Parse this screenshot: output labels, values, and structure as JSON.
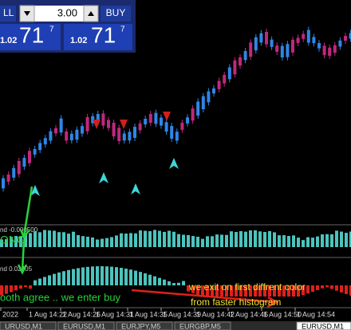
{
  "toolbar": {
    "sell_label": "LL",
    "lot": "3.00",
    "buy_label": "BUY",
    "bid": {
      "big": "1.02",
      "main": "71",
      "pip": "7"
    },
    "ask": {
      "big": "1.02",
      "main": "71",
      "pip": "7"
    }
  },
  "indicators": [
    {
      "label": "nd -0.000500"
    },
    {
      "label": "nd 0.02405"
    }
  ],
  "annotations": {
    "long": "ONG",
    "enter": "ooth agree .. we enter buy",
    "exit_line1": "we exit on first diffrent color",
    "exit_line2": "from faster histogram"
  },
  "time_axis": [
    "2022",
    "1 Aug 14:22",
    "1 Aug 14:26",
    "1 Aug 14:31",
    "1 Aug 14:35",
    "1 Aug 14:39",
    "1 Aug 14:42",
    "1 Aug 14:46",
    "1 Aug 14:50",
    "1 Aug 14:54"
  ],
  "tabs": [
    "URUSD,M1",
    "EURUSD,M1",
    "EURJPY,M5",
    "EURGBP,M5",
    "EURUSD,M1"
  ]
}
